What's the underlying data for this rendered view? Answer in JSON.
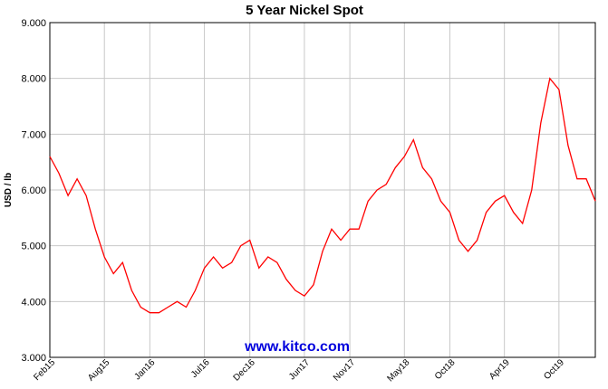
{
  "chart_data": {
    "type": "line",
    "title": "5 Year Nickel Spot",
    "y_label": "USD / lb",
    "annotation": "www.kitco.com",
    "x": [
      "2015-02",
      "2015-03",
      "2015-04",
      "2015-05",
      "2015-06",
      "2015-07",
      "2015-08",
      "2015-09",
      "2015-10",
      "2015-11",
      "2015-12",
      "2016-01",
      "2016-02",
      "2016-03",
      "2016-04",
      "2016-05",
      "2016-06",
      "2016-07",
      "2016-08",
      "2016-09",
      "2016-10",
      "2016-11",
      "2016-12",
      "2017-01",
      "2017-02",
      "2017-03",
      "2017-04",
      "2017-05",
      "2017-06",
      "2017-07",
      "2017-08",
      "2017-09",
      "2017-10",
      "2017-11",
      "2017-12",
      "2018-01",
      "2018-02",
      "2018-03",
      "2018-04",
      "2018-05",
      "2018-06",
      "2018-07",
      "2018-08",
      "2018-09",
      "2018-10",
      "2018-11",
      "2018-12",
      "2019-01",
      "2019-02",
      "2019-03",
      "2019-04",
      "2019-05",
      "2019-06",
      "2019-07",
      "2019-08",
      "2019-09",
      "2019-10",
      "2019-11",
      "2019-12",
      "2020-01",
      "2020-02"
    ],
    "series": [
      {
        "name": "Nickel",
        "color": "#ff0000",
        "values": [
          6.6,
          6.3,
          5.9,
          6.2,
          5.9,
          5.3,
          4.8,
          4.5,
          4.7,
          4.2,
          3.9,
          3.8,
          3.8,
          3.9,
          4.0,
          3.9,
          4.2,
          4.6,
          4.8,
          4.6,
          4.7,
          5.0,
          5.1,
          4.6,
          4.8,
          4.7,
          4.4,
          4.2,
          4.1,
          4.3,
          4.9,
          5.3,
          5.1,
          5.3,
          5.3,
          5.8,
          6.0,
          6.1,
          6.4,
          6.6,
          6.9,
          6.4,
          6.2,
          5.8,
          5.6,
          5.1,
          4.9,
          5.1,
          5.6,
          5.8,
          5.9,
          5.6,
          5.4,
          6.0,
          7.2,
          8.0,
          7.8,
          6.8,
          6.2,
          6.2,
          5.8
        ]
      }
    ],
    "xlim": [
      "2015-02",
      "2020-02"
    ],
    "xticks": [
      {
        "value": "2015-02",
        "label": "Feb15"
      },
      {
        "value": "2015-08",
        "label": "Aug15"
      },
      {
        "value": "2016-01",
        "label": "Jan16"
      },
      {
        "value": "2016-07",
        "label": "Jul16"
      },
      {
        "value": "2016-12",
        "label": "Dec16"
      },
      {
        "value": "2017-06",
        "label": "Jun17"
      },
      {
        "value": "2017-11",
        "label": "Nov17"
      },
      {
        "value": "2018-05",
        "label": "May18"
      },
      {
        "value": "2018-10",
        "label": "Oct18"
      },
      {
        "value": "2019-04",
        "label": "Apr19"
      },
      {
        "value": "2019-10",
        "label": "Oct19"
      }
    ],
    "ylim": [
      3,
      9
    ],
    "yticks": [
      {
        "value": 3,
        "label": "3.000"
      },
      {
        "value": 4,
        "label": "4.000"
      },
      {
        "value": 5,
        "label": "5.000"
      },
      {
        "value": 6,
        "label": "6.000"
      },
      {
        "value": 7,
        "label": "7.000"
      },
      {
        "value": 8,
        "label": "8.000"
      },
      {
        "value": 9,
        "label": "9.000"
      }
    ],
    "grid": true
  }
}
